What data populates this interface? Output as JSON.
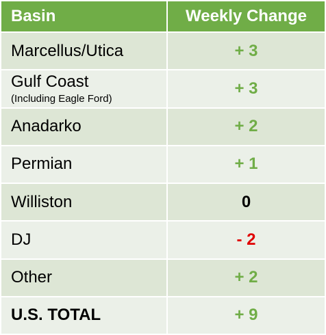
{
  "table": {
    "columns": [
      "Basin",
      "Weekly Change"
    ],
    "rows": [
      {
        "basin": "Marcellus/Utica",
        "change": "+ 3"
      },
      {
        "basin": "Gulf Coast",
        "note": "(Including Eagle Ford)",
        "change": "+ 3"
      },
      {
        "basin": "Anadarko",
        "change": "+ 2"
      },
      {
        "basin": "Permian",
        "change": "+ 1"
      },
      {
        "basin": "Williston",
        "change": "0"
      },
      {
        "basin": "DJ",
        "change": "- 2"
      },
      {
        "basin": "Other",
        "change": "+ 2"
      }
    ],
    "total": {
      "basin": "U.S. TOTAL",
      "change": "+ 9"
    }
  }
}
